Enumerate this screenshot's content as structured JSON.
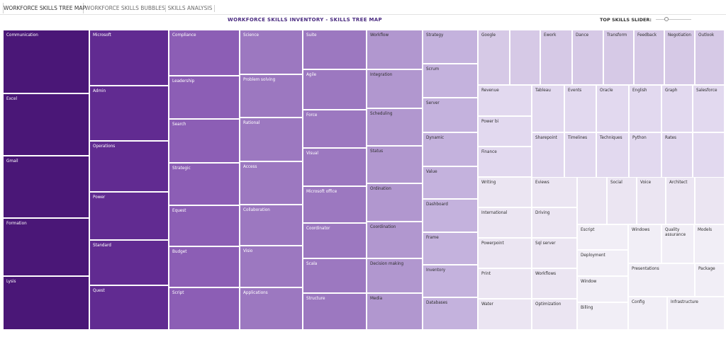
{
  "tabs": [
    {
      "label": "WORKFORCE SKILLS TREE MAP",
      "active": true
    },
    {
      "label": "WORKFORCE SKILLS BUBBLES",
      "active": false
    },
    {
      "label": "SKILLS ANALYSIS",
      "active": false
    }
  ],
  "page_title": "WORKFORCE SKILLS INVENTORY - SKILLS TREE MAP",
  "slider": {
    "label": "TOP SKILLS SLIDER:"
  },
  "colors": {
    "c1": "#4a1777",
    "c2": "#612b91",
    "c3": "#8c5eb5",
    "c4": "#9c78c0",
    "c5": "#b197cf",
    "c6": "#c4b2dd",
    "c7": "#d6c9e6",
    "c8": "#e2d9ef",
    "c9": "#ebe5f2",
    "c10": "#f1eef6"
  },
  "chart_data": {
    "type": "treemap",
    "title": "WORKFORCE SKILLS INVENTORY - SKILLS TREE MAP",
    "columns": [
      {
        "color": "c1",
        "skills": [
          "Communication",
          "Excel",
          "Gmail",
          "Formation",
          "Lysis"
        ]
      },
      {
        "color": "c2",
        "skills": [
          "Microsoft",
          "Admin",
          "Operations",
          "Power",
          "Standard",
          "Quest"
        ]
      },
      {
        "color": "c3",
        "skills": [
          "Compliance",
          "Leadership",
          "Search",
          "Strategic",
          "Equest",
          "Budget",
          "Script"
        ]
      },
      {
        "color": "c4",
        "skills": [
          "Science",
          "Problem solving",
          "Rational",
          "Access",
          "Collaboration",
          "Visio",
          "Applications"
        ]
      },
      {
        "color": "c4",
        "skills": [
          "Suite",
          "Agile",
          "Force",
          "Visual",
          "Microsoft office",
          "Coordinator",
          "Scala",
          "Structure"
        ]
      },
      {
        "color": "c5",
        "skills": [
          "Workflow",
          "Integration",
          "Scheduling",
          "Status",
          "Ordination",
          "Coordination",
          "Decision making",
          "Media"
        ]
      },
      {
        "color": "c6",
        "skills": [
          "Strategy",
          "Scrum",
          "Server",
          "Dynamic",
          "Value",
          "Dashboard",
          "Frame",
          "Inventory",
          "Databases"
        ]
      }
    ],
    "right_region": {
      "row1": {
        "color": "c7",
        "skills": [
          "Google",
          "",
          "Ework",
          "Dance",
          "Transform",
          "Feedback",
          "Negotiation",
          "Outlook"
        ]
      },
      "left_stack": {
        "color": "c8",
        "skills": [
          "Revenue",
          "Power bi",
          "Finance"
        ]
      },
      "grid2": {
        "color": "c8",
        "rows": [
          [
            "Tableau",
            "Events",
            "Oracle",
            "English",
            "Graph",
            "Salesforce"
          ],
          [
            "Sharepoint",
            "Timelines",
            "Techniques",
            "Python",
            "Rates",
            ""
          ]
        ]
      },
      "lower_col1": {
        "color": "c9",
        "skills": [
          "Writing",
          "International",
          "Powerpoint",
          "Print",
          "Water"
        ]
      },
      "lower_col2": {
        "color": "c9",
        "skills": [
          "Eviews",
          "Driving",
          "Sql server",
          "Workflows",
          "Optimization"
        ]
      },
      "lower_row1": {
        "color": "c9",
        "skills": [
          "",
          "Social",
          "Voice",
          "Architect",
          ""
        ]
      },
      "lower_col3": {
        "color": "c10",
        "skills": [
          "Escript",
          "Deployment",
          "Window",
          "Billing"
        ]
      },
      "lower_misc": {
        "color": "c10",
        "skills": [
          "Windows",
          "Quality assurance",
          "Models",
          "Presentations",
          "Package",
          "Config",
          "Infrastructure"
        ]
      }
    }
  }
}
